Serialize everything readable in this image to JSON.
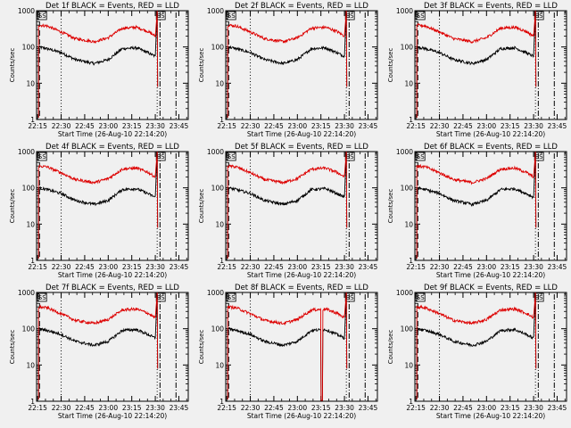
{
  "chart_data": {
    "type": "line",
    "panels": [
      {
        "title": "Det 1f BLACK = Events, RED = LLD",
        "dropout": null
      },
      {
        "title": "Det 2f BLACK = Events, RED = LLD",
        "dropout": null
      },
      {
        "title": "Det 3f BLACK = Events, RED = LLD",
        "dropout": null
      },
      {
        "title": "Det 4f BLACK = Events, RED = LLD",
        "dropout": null
      },
      {
        "title": "Det 5f BLACK = Events, RED = LLD",
        "dropout": null
      },
      {
        "title": "Det 6f BLACK = Events, RED = LLD",
        "dropout": null
      },
      {
        "title": "Det 7f BLACK = Events, RED = LLD",
        "dropout": null
      },
      {
        "title": "Det 8f BLACK = Events, RED = LLD",
        "dropout": [
          23.25,
          23.27
        ]
      },
      {
        "title": "Det 9f BLACK = Events, RED = LLD",
        "dropout": null
      }
    ],
    "xlabel": "Start Time (26-Aug-10 22:14:20)",
    "ylabel": "Counts/sec",
    "x_ticks": [
      "22:15",
      "22:30",
      "22:45",
      "23:00",
      "23:15",
      "23:30",
      "23:45"
    ],
    "y_ticks": [
      "1",
      "10",
      "100",
      "1000"
    ],
    "y_scale": "log",
    "ylim": [
      1,
      1000
    ],
    "annotations": [
      "SS",
      "ES"
    ],
    "series": [
      {
        "name": "Events",
        "color": "#000000",
        "x_hours": [
          22.26,
          22.35,
          22.5,
          22.65,
          22.85,
          23.0,
          23.15,
          23.3,
          23.42,
          23.5,
          23.52
        ],
        "values": [
          100,
          90,
          70,
          45,
          35,
          45,
          90,
          95,
          70,
          55,
          1000
        ]
      },
      {
        "name": "LLD",
        "color": "#dd0000",
        "x_hours": [
          22.26,
          22.35,
          22.5,
          22.65,
          22.85,
          23.0,
          23.15,
          23.3,
          23.42,
          23.5,
          23.52
        ],
        "values": [
          400,
          380,
          260,
          170,
          140,
          180,
          330,
          350,
          270,
          200,
          1000
        ]
      }
    ],
    "vertical_lines": [
      {
        "x_hours": 22.27,
        "style": "dashed"
      },
      {
        "x_hours": 22.5,
        "style": "dotted"
      },
      {
        "x_hours": 23.52,
        "style": "dotted"
      },
      {
        "x_hours": 23.55,
        "style": "dash-dot"
      },
      {
        "x_hours": 23.72,
        "style": "dash-dot"
      }
    ],
    "xlim_hours": [
      22.2389,
      23.85
    ]
  }
}
